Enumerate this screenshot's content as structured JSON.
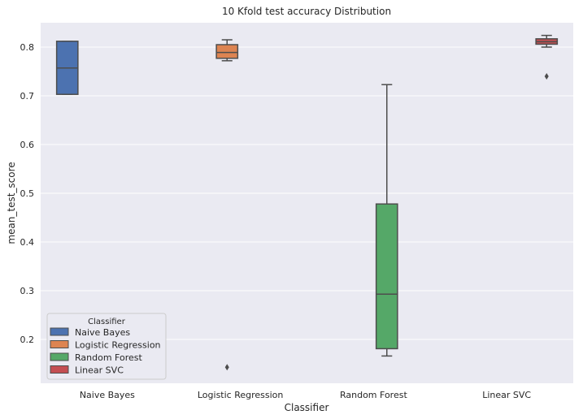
{
  "chart_data": {
    "type": "box",
    "title": "10 Kfold test accuracy Distribution",
    "xlabel": "Classifier",
    "ylabel": "mean_test_score",
    "ylim": [
      0.11,
      0.85
    ],
    "yticks": [
      0.2,
      0.3,
      0.4,
      0.5,
      0.6,
      0.7,
      0.8
    ],
    "grid": true,
    "legend_position": "lower-left",
    "legend_title": "Classifier",
    "categories": [
      "Naive Bayes",
      "Logistic Regression",
      "Random Forest",
      "Linear SVC"
    ],
    "series": [
      {
        "name": "Naive Bayes",
        "color": "#4c72b0",
        "category": "Naive Bayes",
        "whisker_low": 0.703,
        "q1": 0.703,
        "median": 0.757,
        "q3": 0.812,
        "whisker_high": 0.812,
        "outliers": []
      },
      {
        "name": "Logistic Regression",
        "color": "#dd8452",
        "category": "Logistic Regression",
        "whisker_low": 0.772,
        "q1": 0.777,
        "median": 0.789,
        "q3": 0.805,
        "whisker_high": 0.815,
        "outliers": [
          0.143
        ]
      },
      {
        "name": "Random Forest",
        "color": "#55a868",
        "category": "Random Forest",
        "whisker_low": 0.166,
        "q1": 0.181,
        "median": 0.293,
        "q3": 0.478,
        "whisker_high": 0.723,
        "outliers": []
      },
      {
        "name": "Linear SVC",
        "color": "#c44e52",
        "category": "Linear SVC",
        "whisker_low": 0.8,
        "q1": 0.806,
        "median": 0.811,
        "q3": 0.817,
        "whisker_high": 0.824,
        "outliers": [
          0.74
        ]
      }
    ]
  }
}
